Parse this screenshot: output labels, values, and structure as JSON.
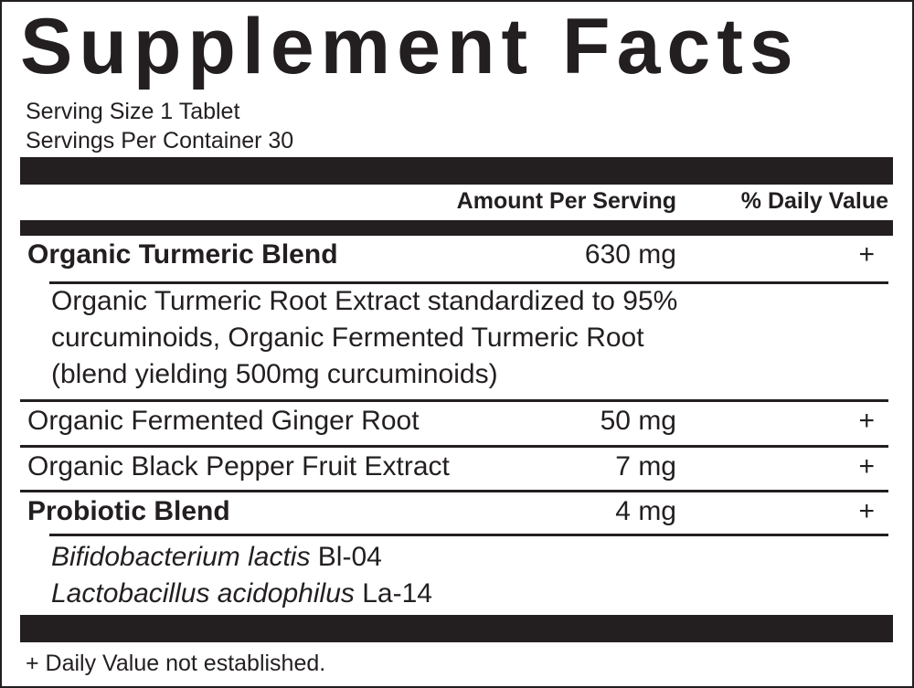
{
  "label": {
    "title": "Supplement Facts",
    "serving_size": "Serving Size 1 Tablet",
    "servings_per_container": "Servings Per Container 30",
    "header": {
      "amount": "Amount Per Serving",
      "daily_value": "% Daily Value"
    },
    "rows": [
      {
        "name": "Organic Turmeric Blend",
        "amount": "630 mg",
        "dv": "+",
        "detail": [
          "Organic Turmeric Root Extract standardized to 95%",
          "curcuminoids, Organic Fermented Turmeric Root",
          "(blend yielding 500mg curcuminoids)"
        ]
      },
      {
        "name": "Organic Fermented Ginger Root",
        "amount": "50 mg",
        "dv": "+"
      },
      {
        "name": "Organic Black Pepper Fruit Extract",
        "amount": "7 mg",
        "dv": "+"
      },
      {
        "name": "Probiotic Blend",
        "amount": "4 mg",
        "dv": "+",
        "strains": [
          {
            "species": "Bifidobacterium lactis",
            "strain": "Bl-04"
          },
          {
            "species": "Lactobacillus acidophilus",
            "strain": "La-14"
          }
        ]
      }
    ],
    "footnote": "+ Daily Value not established."
  }
}
